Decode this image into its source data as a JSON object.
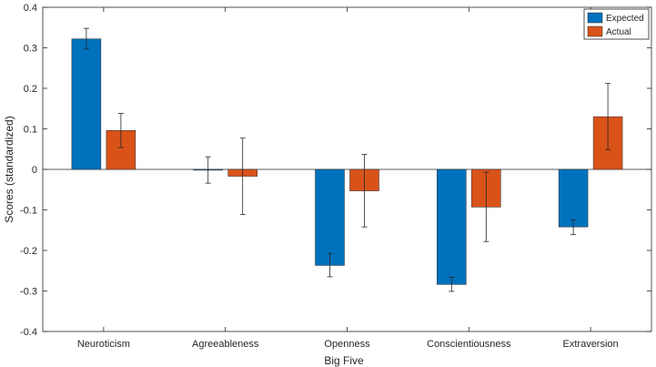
{
  "chart_data": {
    "type": "bar",
    "title": "",
    "xlabel": "Big Five",
    "ylabel": "Scores (standardized)",
    "ylim": [
      -0.4,
      0.4
    ],
    "yticks": [
      -0.4,
      -0.3,
      -0.2,
      -0.1,
      0,
      0.1,
      0.2,
      0.3,
      0.4
    ],
    "ytick_labels": [
      "-0.4",
      "-0.3",
      "-0.2",
      "-0.1",
      "0",
      "0.1",
      "0.2",
      "0.3",
      "0.4"
    ],
    "categories": [
      "Neuroticism",
      "Agreeableness",
      "Openness",
      "Conscientiousness",
      "Extraversion"
    ],
    "legend_position": "top-right",
    "series": [
      {
        "name": "Expected",
        "color": "#0072BD",
        "values": [
          0.322,
          -0.002,
          -0.237,
          -0.284,
          -0.142
        ],
        "err_low": [
          0.297,
          -0.034,
          -0.265,
          -0.301,
          -0.161
        ],
        "err_high": [
          0.348,
          0.031,
          -0.207,
          -0.266,
          -0.125
        ]
      },
      {
        "name": "Actual",
        "color": "#D95319",
        "values": [
          0.096,
          -0.017,
          -0.053,
          -0.093,
          0.13
        ],
        "err_low": [
          0.054,
          -0.111,
          -0.142,
          -0.178,
          0.048
        ],
        "err_high": [
          0.138,
          0.077,
          0.037,
          -0.007,
          0.212
        ]
      }
    ]
  }
}
